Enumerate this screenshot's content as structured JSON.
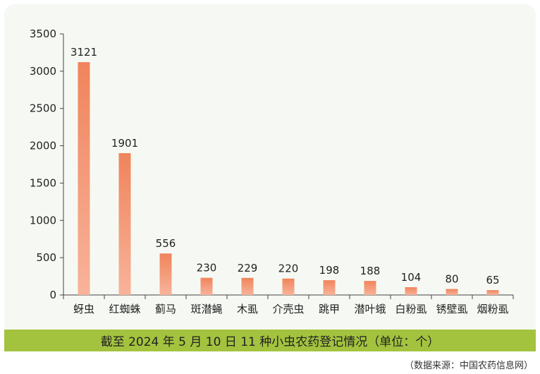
{
  "chart_data": {
    "type": "bar",
    "categories": [
      "蚜虫",
      "红蜘蛛",
      "蓟马",
      "斑潜蝇",
      "木虱",
      "介壳虫",
      "跳甲",
      "潜叶蛾",
      "白粉虱",
      "锈壁虱",
      "烟粉虱"
    ],
    "values": [
      3121,
      1901,
      556,
      230,
      229,
      220,
      198,
      188,
      104,
      80,
      65
    ],
    "data_labels": [
      "3121",
      "1901",
      "556",
      "230",
      "229",
      "220",
      "198",
      "188",
      "104",
      "80",
      "65"
    ],
    "ylim": [
      0,
      3500
    ],
    "yticks": [
      0,
      500,
      1000,
      1500,
      2000,
      2500,
      3000,
      3500
    ],
    "ytick_labels": [
      "0",
      "500",
      "1000",
      "1500",
      "2000",
      "2500",
      "3000",
      "3500"
    ],
    "xlabel": "",
    "ylabel": "",
    "bar_color_top": "#f0845c",
    "bar_color_bottom": "#f8b39a",
    "grid": false
  },
  "caption": "截至 2024 年 5 月 10 日 11 种小虫农药登记情况（单位：个）",
  "source": "（数据来源：中国农药信息网）",
  "colors": {
    "caption_bg": "#a3c33f",
    "panel_bg": "#f6f9f3"
  }
}
